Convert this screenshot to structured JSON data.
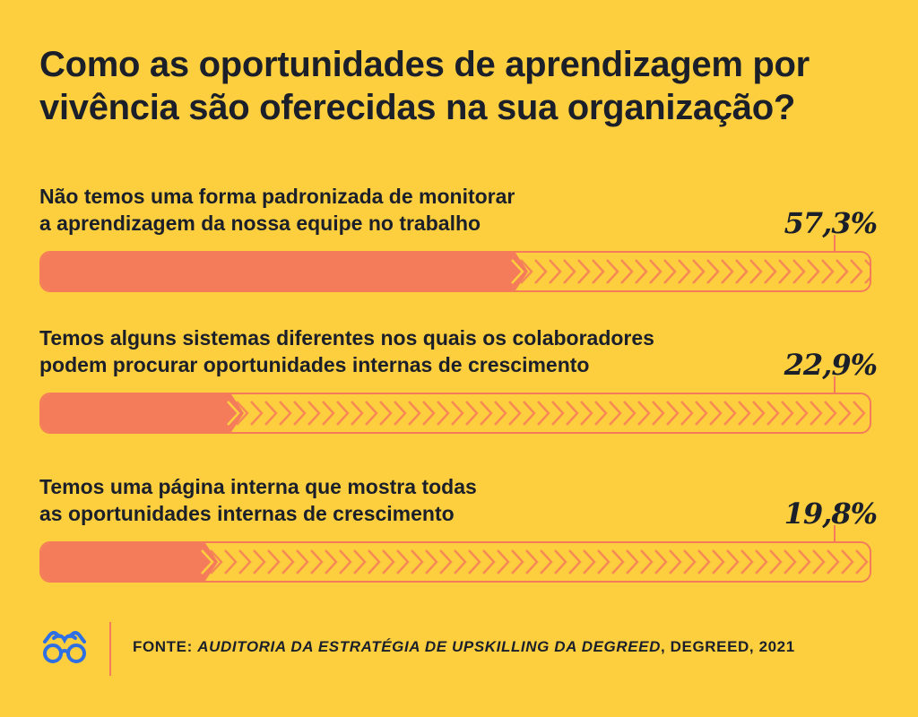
{
  "title_line1": "Como as oportunidades de aprendizagem por",
  "title_line2": "vivência são oferecidas na sua organização?",
  "chart_data": {
    "type": "bar",
    "orientation": "horizontal",
    "unit": "%",
    "categories": [
      "Não temos uma forma padronizada de monitorar a aprendizagem da nossa equipe no trabalho",
      "Temos alguns sistemas diferentes nos quais os colaboradores podem procurar oportunidades internas de crescimento",
      "Temos uma página interna que mostra todas as oportunidades internas de crescimento"
    ],
    "values": [
      57.3,
      22.9,
      19.8
    ],
    "xlim": [
      0,
      100
    ],
    "items": [
      {
        "line1": "Não temos uma forma padronizada de monitorar",
        "line2": "a aprendizagem da nossa equipe no trabalho",
        "value": 57.3,
        "value_label": "57,3%"
      },
      {
        "line1": "Temos alguns sistemas diferentes nos quais os colaboradores",
        "line2": "podem procurar oportunidades internas de crescimento",
        "value": 22.9,
        "value_label": "22,9%"
      },
      {
        "line1": "Temos uma página interna que mostra todas",
        "line2": "as oportunidades internas de crescimento",
        "value": 19.8,
        "value_label": "19,8%"
      }
    ]
  },
  "source_prefix": "FONTE: ",
  "source_italic": "AUDITORIA DA ESTRATÉGIA DE UPSKILLING DA DEGREED",
  "source_suffix": ", DEGREED, 2021",
  "colors": {
    "background": "#FDCF3E",
    "bar": "#F47C5B",
    "text": "#1B1F2A",
    "logo": "#2F6FE4"
  },
  "icons": {
    "logo": "glasses-icon"
  }
}
